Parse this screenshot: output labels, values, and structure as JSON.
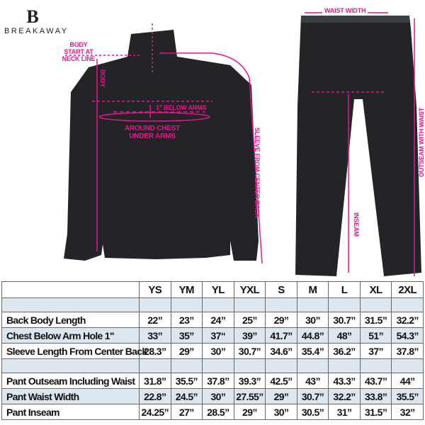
{
  "brand": {
    "name": "BREAKAWAY"
  },
  "diagram_labels": {
    "body_start": "BODY START AT NECK LINE",
    "body": "BODY",
    "below_arms": "1\" BELOW ARMS",
    "around_chest": "AROUND CHEST UNDER ARMS",
    "sleeve": "SLEEVE FROM CENTER BACK",
    "waist_width": "WAIST WIDTH",
    "inseam": "INSEAM",
    "outseam": "OUTSEAM WITH WAIST"
  },
  "colors": {
    "accent": "#e6168a",
    "garment": "#222427",
    "row_shade": "#dbe6ee"
  },
  "table": {
    "sizes": [
      "YS",
      "YM",
      "YL",
      "YXL",
      "S",
      "M",
      "L",
      "XL",
      "2XL"
    ],
    "jacket_rows": [
      {
        "label": "Back Body Length",
        "values": [
          "22”",
          "23”",
          "24”",
          "25”",
          "29”",
          "30”",
          "30.7”",
          "31.5”",
          "32.2”"
        ]
      },
      {
        "label": "Chest Below Arm Hole 1\"",
        "values": [
          "33”",
          "35”",
          "37“",
          "39”",
          "41.7”",
          "44.8”",
          "48”",
          "51”",
          "54.3”"
        ]
      },
      {
        "label": "Sleeve Length From Center Back",
        "values": [
          "28.3”",
          "29”",
          "30”",
          "30.7”",
          "34.6”",
          "35.4”",
          "36.2”",
          "37”",
          "37.8”"
        ]
      }
    ],
    "pant_rows": [
      {
        "label": "Pant Outseam Including Waist",
        "values": [
          "31.8”",
          "35.5”",
          "37.8”",
          "39.3”",
          "42.5”",
          "43”",
          "43.3”",
          "43.7”",
          "44”"
        ]
      },
      {
        "label": "Pant Waist Width",
        "values": [
          "22.8”",
          "24.5”",
          "30”",
          "27.55”",
          "29”",
          "30.7”",
          "32.2”",
          "33.8”",
          "35.5”"
        ]
      },
      {
        "label": "Pant Inseam",
        "values": [
          "24.25”",
          "27”",
          "28.5”",
          "29”",
          "30”",
          "30.5”",
          "31”",
          "31.5”",
          "32”"
        ]
      }
    ]
  }
}
